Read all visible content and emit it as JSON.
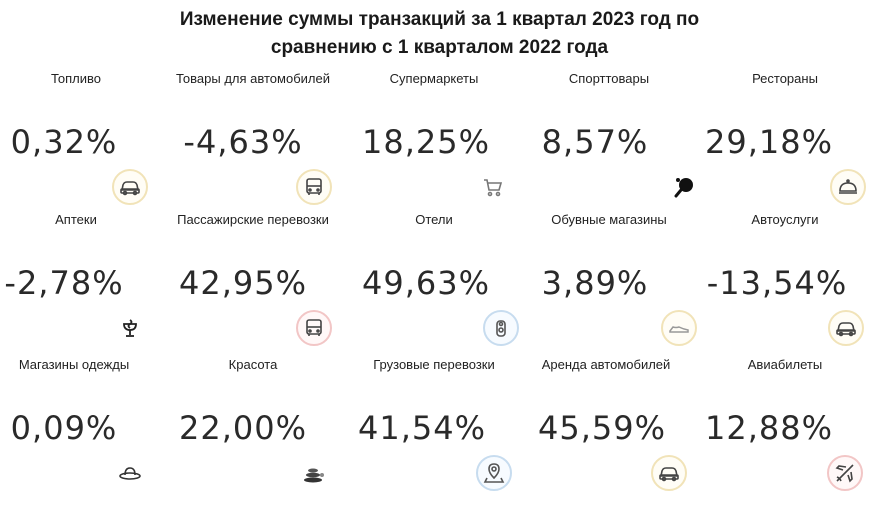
{
  "title": {
    "line1": "Изменение суммы транзакций за 1 квартал 2023 год по",
    "line2": "сравнению с 1 кварталом 2022 года"
  },
  "rows": [
    [
      {
        "label": "Топливо",
        "value": "0,32%",
        "icon": "car-icon"
      },
      {
        "label": "Товары для автомобилей",
        "value": "-4,63%",
        "icon": "bus-icon"
      },
      {
        "label": "Супермаркеты",
        "value": "18,25%",
        "icon": "cart-icon"
      },
      {
        "label": "Спорттовары",
        "value": "8,57%",
        "icon": "ping-pong-icon"
      },
      {
        "label": "Рестораны",
        "value": "29,18%",
        "icon": "cloche-icon"
      }
    ],
    [
      {
        "label": "Аптеки",
        "value": "-2,78%",
        "icon": "pharmacy-icon"
      },
      {
        "label": "Пассажирские перевозки",
        "value": "42,95%",
        "icon": "bus-icon"
      },
      {
        "label": "Отели",
        "value": "49,63%",
        "icon": "door-hanger-icon"
      },
      {
        "label": "Обувные магазины",
        "value": "3,89%",
        "icon": "shoe-icon"
      },
      {
        "label": "Автоуслуги",
        "value": "-13,54%",
        "icon": "car-icon"
      }
    ],
    [
      {
        "label": "Магазины одежды",
        "value": "0,09%",
        "icon": "hat-icon"
      },
      {
        "label": "Красота",
        "value": "22,00%",
        "icon": "spa-stones-icon"
      },
      {
        "label": "Грузовые перевозки",
        "value": "41,54%",
        "icon": "map-pin-icon"
      },
      {
        "label": "Аренда автомобилей",
        "value": "45,59%",
        "icon": "car-icon"
      },
      {
        "label": "Авиабилеты",
        "value": "12,88%",
        "icon": "airplane-icon"
      }
    ]
  ]
}
